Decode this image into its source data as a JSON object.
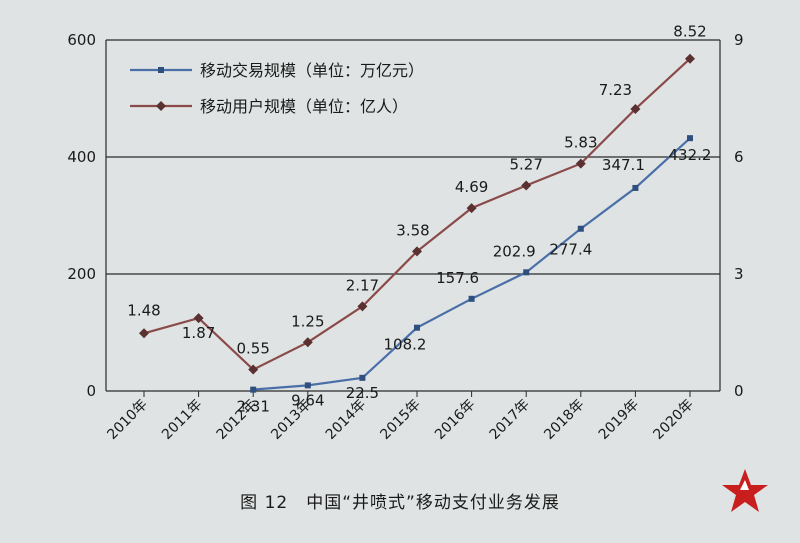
{
  "chart_data": {
    "type": "line",
    "categories": [
      "2010年",
      "2011年",
      "2012年",
      "2013年",
      "2014年",
      "2015年",
      "2016年",
      "2017年",
      "2018年",
      "2019年",
      "2020年"
    ],
    "y_left": {
      "ylim": [
        0,
        600
      ],
      "ticks": [
        0,
        200,
        400,
        600
      ]
    },
    "y_right": {
      "ylim": [
        0,
        9
      ],
      "ticks": [
        0,
        3,
        6,
        9
      ]
    },
    "grid": "horizontal",
    "legend_position": "top-left",
    "series": [
      {
        "name": "移动交易规模（单位：万亿元）",
        "axis": "left",
        "color": "#4a6fa8",
        "values": [
          null,
          null,
          2.31,
          9.64,
          22.5,
          108.2,
          157.6,
          202.9,
          277.4,
          347.1,
          432.2
        ],
        "labels": [
          "",
          "",
          "2.31",
          "9.64",
          "22.5",
          "108.2",
          "157.6",
          "202.9",
          "277.4",
          "347.1",
          "432.2"
        ]
      },
      {
        "name": "移动用户规模（单位：亿人）",
        "axis": "right",
        "color": "#8b4a4a",
        "values": [
          1.48,
          1.87,
          0.55,
          1.25,
          2.17,
          3.58,
          4.69,
          5.27,
          5.83,
          7.23,
          8.52
        ],
        "labels": [
          "1.48",
          "1.87",
          "0.55",
          "1.25",
          "2.17",
          "3.58",
          "4.69",
          "5.27",
          "5.83",
          "7.23",
          "8.52"
        ]
      }
    ]
  },
  "caption": "图 12　中国“井喷式”移动支付业务发展"
}
